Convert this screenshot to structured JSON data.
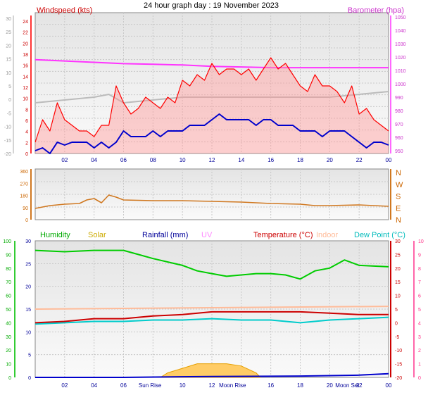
{
  "title": "24 hour graph day : 19 November 2023",
  "chart_data": [
    {
      "type": "line",
      "panel": "wind-baro",
      "series_labels": {
        "windspeed": "Windspeed (kts)",
        "barometer": "Barometer (hpa)"
      },
      "colors": {
        "windspeed": "#ff0000",
        "average": "#0000cc",
        "barometer": "#ff33ff",
        "gust_trace": "#bbbbbb",
        "left_temp_axis": "#aaaaaa"
      },
      "x_ticks": [
        "02",
        "04",
        "06",
        "08",
        "10",
        "12",
        "14",
        "16",
        "18",
        "20",
        "22",
        "00"
      ],
      "x_range_hours": [
        0,
        24
      ],
      "left_outer_ticks": [
        "30",
        "25",
        "20",
        "15",
        "10",
        "5",
        "0",
        "-5",
        "-10",
        "-15",
        "-20"
      ],
      "left_ticks": [
        "24",
        "22",
        "20",
        "18",
        "16",
        "14",
        "12",
        "10",
        "8",
        "6",
        "4",
        "2",
        "0"
      ],
      "right_ticks": [
        "1050",
        "1040",
        "1030",
        "1020",
        "1010",
        "1000",
        "990",
        "980",
        "970",
        "960",
        "950"
      ],
      "ylim_wind": [
        0,
        25
      ],
      "ylim_baro": [
        945,
        1050
      ],
      "gust_kts": [
        [
          0,
          2
        ],
        [
          0.5,
          6
        ],
        [
          1,
          4
        ],
        [
          1.5,
          9
        ],
        [
          2,
          6
        ],
        [
          2.5,
          5
        ],
        [
          3,
          4
        ],
        [
          3.5,
          4
        ],
        [
          4,
          3
        ],
        [
          4.5,
          5
        ],
        [
          5,
          5
        ],
        [
          5.5,
          12
        ],
        [
          6,
          9
        ],
        [
          6.5,
          7
        ],
        [
          7,
          8
        ],
        [
          7.5,
          10
        ],
        [
          8,
          9
        ],
        [
          8.5,
          8
        ],
        [
          9,
          10
        ],
        [
          9.5,
          9
        ],
        [
          10,
          13
        ],
        [
          10.5,
          12
        ],
        [
          11,
          14
        ],
        [
          11.5,
          13
        ],
        [
          12,
          16
        ],
        [
          12.5,
          14
        ],
        [
          13,
          15
        ],
        [
          13.5,
          15
        ],
        [
          14,
          14
        ],
        [
          14.5,
          15
        ],
        [
          15,
          13
        ],
        [
          15.5,
          15
        ],
        [
          16,
          17
        ],
        [
          16.5,
          15
        ],
        [
          17,
          16
        ],
        [
          17.5,
          14
        ],
        [
          18,
          12
        ],
        [
          18.5,
          11
        ],
        [
          19,
          14
        ],
        [
          19.5,
          12
        ],
        [
          20,
          12
        ],
        [
          20.5,
          11
        ],
        [
          21,
          9
        ],
        [
          21.5,
          12
        ],
        [
          22,
          7
        ],
        [
          22.5,
          8
        ],
        [
          23,
          6
        ],
        [
          23.5,
          5
        ],
        [
          24,
          4
        ]
      ],
      "mean_kts": [
        [
          0,
          0.5
        ],
        [
          0.5,
          1
        ],
        [
          1,
          0
        ],
        [
          1.5,
          2
        ],
        [
          2,
          1.5
        ],
        [
          2.5,
          2
        ],
        [
          3,
          2
        ],
        [
          3.5,
          2
        ],
        [
          4,
          1
        ],
        [
          4.5,
          2
        ],
        [
          5,
          1
        ],
        [
          5.5,
          2
        ],
        [
          6,
          4
        ],
        [
          6.5,
          3
        ],
        [
          7,
          3
        ],
        [
          7.5,
          3
        ],
        [
          8,
          4
        ],
        [
          8.5,
          3
        ],
        [
          9,
          4
        ],
        [
          9.5,
          4
        ],
        [
          10,
          4
        ],
        [
          10.5,
          5
        ],
        [
          11,
          5
        ],
        [
          11.5,
          5
        ],
        [
          12,
          6
        ],
        [
          12.5,
          7
        ],
        [
          13,
          6
        ],
        [
          13.5,
          6
        ],
        [
          14,
          6
        ],
        [
          14.5,
          6
        ],
        [
          15,
          5
        ],
        [
          15.5,
          6
        ],
        [
          16,
          6
        ],
        [
          16.5,
          5
        ],
        [
          17,
          5
        ],
        [
          17.5,
          5
        ],
        [
          18,
          4
        ],
        [
          18.5,
          4
        ],
        [
          19,
          4
        ],
        [
          19.5,
          3
        ],
        [
          20,
          4
        ],
        [
          20.5,
          4
        ],
        [
          21,
          4
        ],
        [
          21.5,
          3
        ],
        [
          22,
          2
        ],
        [
          22.5,
          1
        ],
        [
          23,
          2
        ],
        [
          23.5,
          2
        ],
        [
          24,
          1.5
        ]
      ],
      "baro_hpa": [
        [
          0,
          1015
        ],
        [
          2,
          1014
        ],
        [
          4,
          1013
        ],
        [
          6,
          1012
        ],
        [
          8,
          1011.5
        ],
        [
          10,
          1011
        ],
        [
          12,
          1010
        ],
        [
          14,
          1009.5
        ],
        [
          16,
          1009
        ],
        [
          18,
          1009
        ],
        [
          20,
          1009
        ],
        [
          22,
          1009
        ],
        [
          24,
          1009
        ]
      ],
      "gray_trace": [
        [
          0,
          -2
        ],
        [
          2,
          -1
        ],
        [
          4,
          0
        ],
        [
          5,
          1
        ],
        [
          6,
          -2
        ],
        [
          8,
          -1
        ],
        [
          10,
          0
        ],
        [
          12,
          0
        ],
        [
          14,
          0
        ],
        [
          16,
          0
        ],
        [
          18,
          0
        ],
        [
          20,
          0
        ],
        [
          22,
          1
        ],
        [
          24,
          2
        ]
      ]
    },
    {
      "type": "line",
      "panel": "wind-direction",
      "left_ticks": [
        "360",
        "270",
        "180",
        "90",
        "0"
      ],
      "right_labels": [
        "N",
        "W",
        "S",
        "E",
        "N"
      ],
      "color": "#d07820",
      "direction_deg": [
        [
          0,
          80
        ],
        [
          1,
          100
        ],
        [
          2,
          110
        ],
        [
          3,
          115
        ],
        [
          3.5,
          140
        ],
        [
          4,
          150
        ],
        [
          4.5,
          120
        ],
        [
          5,
          175
        ],
        [
          5.5,
          160
        ],
        [
          6,
          140
        ],
        [
          8,
          135
        ],
        [
          10,
          135
        ],
        [
          12,
          130
        ],
        [
          14,
          125
        ],
        [
          16,
          115
        ],
        [
          18,
          110
        ],
        [
          19,
          100
        ],
        [
          20,
          100
        ],
        [
          22,
          105
        ],
        [
          24,
          95
        ]
      ]
    },
    {
      "type": "line",
      "panel": "temp-humidity",
      "series_labels": {
        "humidity": "Humidity",
        "solar": "Solar",
        "rainfall": "Rainfall (mm)",
        "uv": "UV",
        "temperature": "Temperature (°C)",
        "indoor": "Indoor",
        "dewpoint": "Dew Point (°C)"
      },
      "colors": {
        "humidity": "#00cc00",
        "solar": "#ccaa00",
        "rainfall": "#0000cc",
        "uv": "#ff88ff",
        "temperature": "#cc0000",
        "indoor": "#ffbb99",
        "dewpoint": "#00cccc",
        "feels": "#aaaaff"
      },
      "left_outer_ticks": [
        "100",
        "90",
        "80",
        "70",
        "60",
        "50",
        "40",
        "30",
        "20",
        "10",
        "0"
      ],
      "left_ticks": [
        "30",
        "25",
        "20",
        "15",
        "10",
        "5",
        "0"
      ],
      "right_ticks": [
        "30",
        "25",
        "20",
        "15",
        "10",
        "5",
        "0",
        "-5",
        "-10",
        "-15",
        "-20"
      ],
      "right_outer_ticks": [
        "10",
        "9",
        "8",
        "7",
        "6",
        "5",
        "4",
        "3",
        "2",
        "1",
        "0"
      ],
      "x_labels": [
        "02",
        "04",
        "06",
        "Sun Rise",
        "10",
        "12",
        "Moon Rise",
        "16",
        "18",
        "20",
        "Moon Set",
        "22",
        "00"
      ],
      "humidity_pct": [
        [
          0,
          93
        ],
        [
          2,
          92
        ],
        [
          4,
          93
        ],
        [
          6,
          93
        ],
        [
          7,
          90
        ],
        [
          8,
          87
        ],
        [
          10,
          82
        ],
        [
          11,
          78
        ],
        [
          12,
          76
        ],
        [
          13,
          74
        ],
        [
          14,
          75
        ],
        [
          15,
          76
        ],
        [
          16,
          76
        ],
        [
          17,
          75
        ],
        [
          18,
          72
        ],
        [
          19,
          78
        ],
        [
          20,
          80
        ],
        [
          21,
          86
        ],
        [
          22,
          82
        ],
        [
          24,
          81
        ]
      ],
      "temperature_c": [
        [
          0,
          0
        ],
        [
          2,
          0.5
        ],
        [
          4,
          1.5
        ],
        [
          6,
          1.5
        ],
        [
          8,
          2.5
        ],
        [
          10,
          3
        ],
        [
          12,
          4
        ],
        [
          14,
          4
        ],
        [
          16,
          4
        ],
        [
          18,
          4
        ],
        [
          20,
          3.5
        ],
        [
          22,
          3
        ],
        [
          24,
          3
        ]
      ],
      "dewpoint_c": [
        [
          0,
          -0.5
        ],
        [
          2,
          0
        ],
        [
          4,
          0.5
        ],
        [
          6,
          0.5
        ],
        [
          8,
          1
        ],
        [
          10,
          1
        ],
        [
          12,
          1.5
        ],
        [
          14,
          1
        ],
        [
          16,
          1
        ],
        [
          18,
          0
        ],
        [
          20,
          1
        ],
        [
          22,
          1.5
        ],
        [
          24,
          2
        ]
      ],
      "indoor_c": [
        [
          0,
          5
        ],
        [
          24,
          6
        ]
      ],
      "rain_mm": [
        [
          0,
          0
        ],
        [
          6,
          0
        ],
        [
          12,
          0.2
        ],
        [
          18,
          0.3
        ],
        [
          22,
          0.5
        ],
        [
          24,
          0.8
        ]
      ],
      "solar_wm2": [
        [
          8.5,
          0
        ],
        [
          9,
          1
        ],
        [
          10,
          2
        ],
        [
          11,
          3
        ],
        [
          12,
          3
        ],
        [
          13,
          3
        ],
        [
          14,
          2.5
        ],
        [
          15,
          1
        ],
        [
          15.3,
          0
        ]
      ]
    }
  ]
}
